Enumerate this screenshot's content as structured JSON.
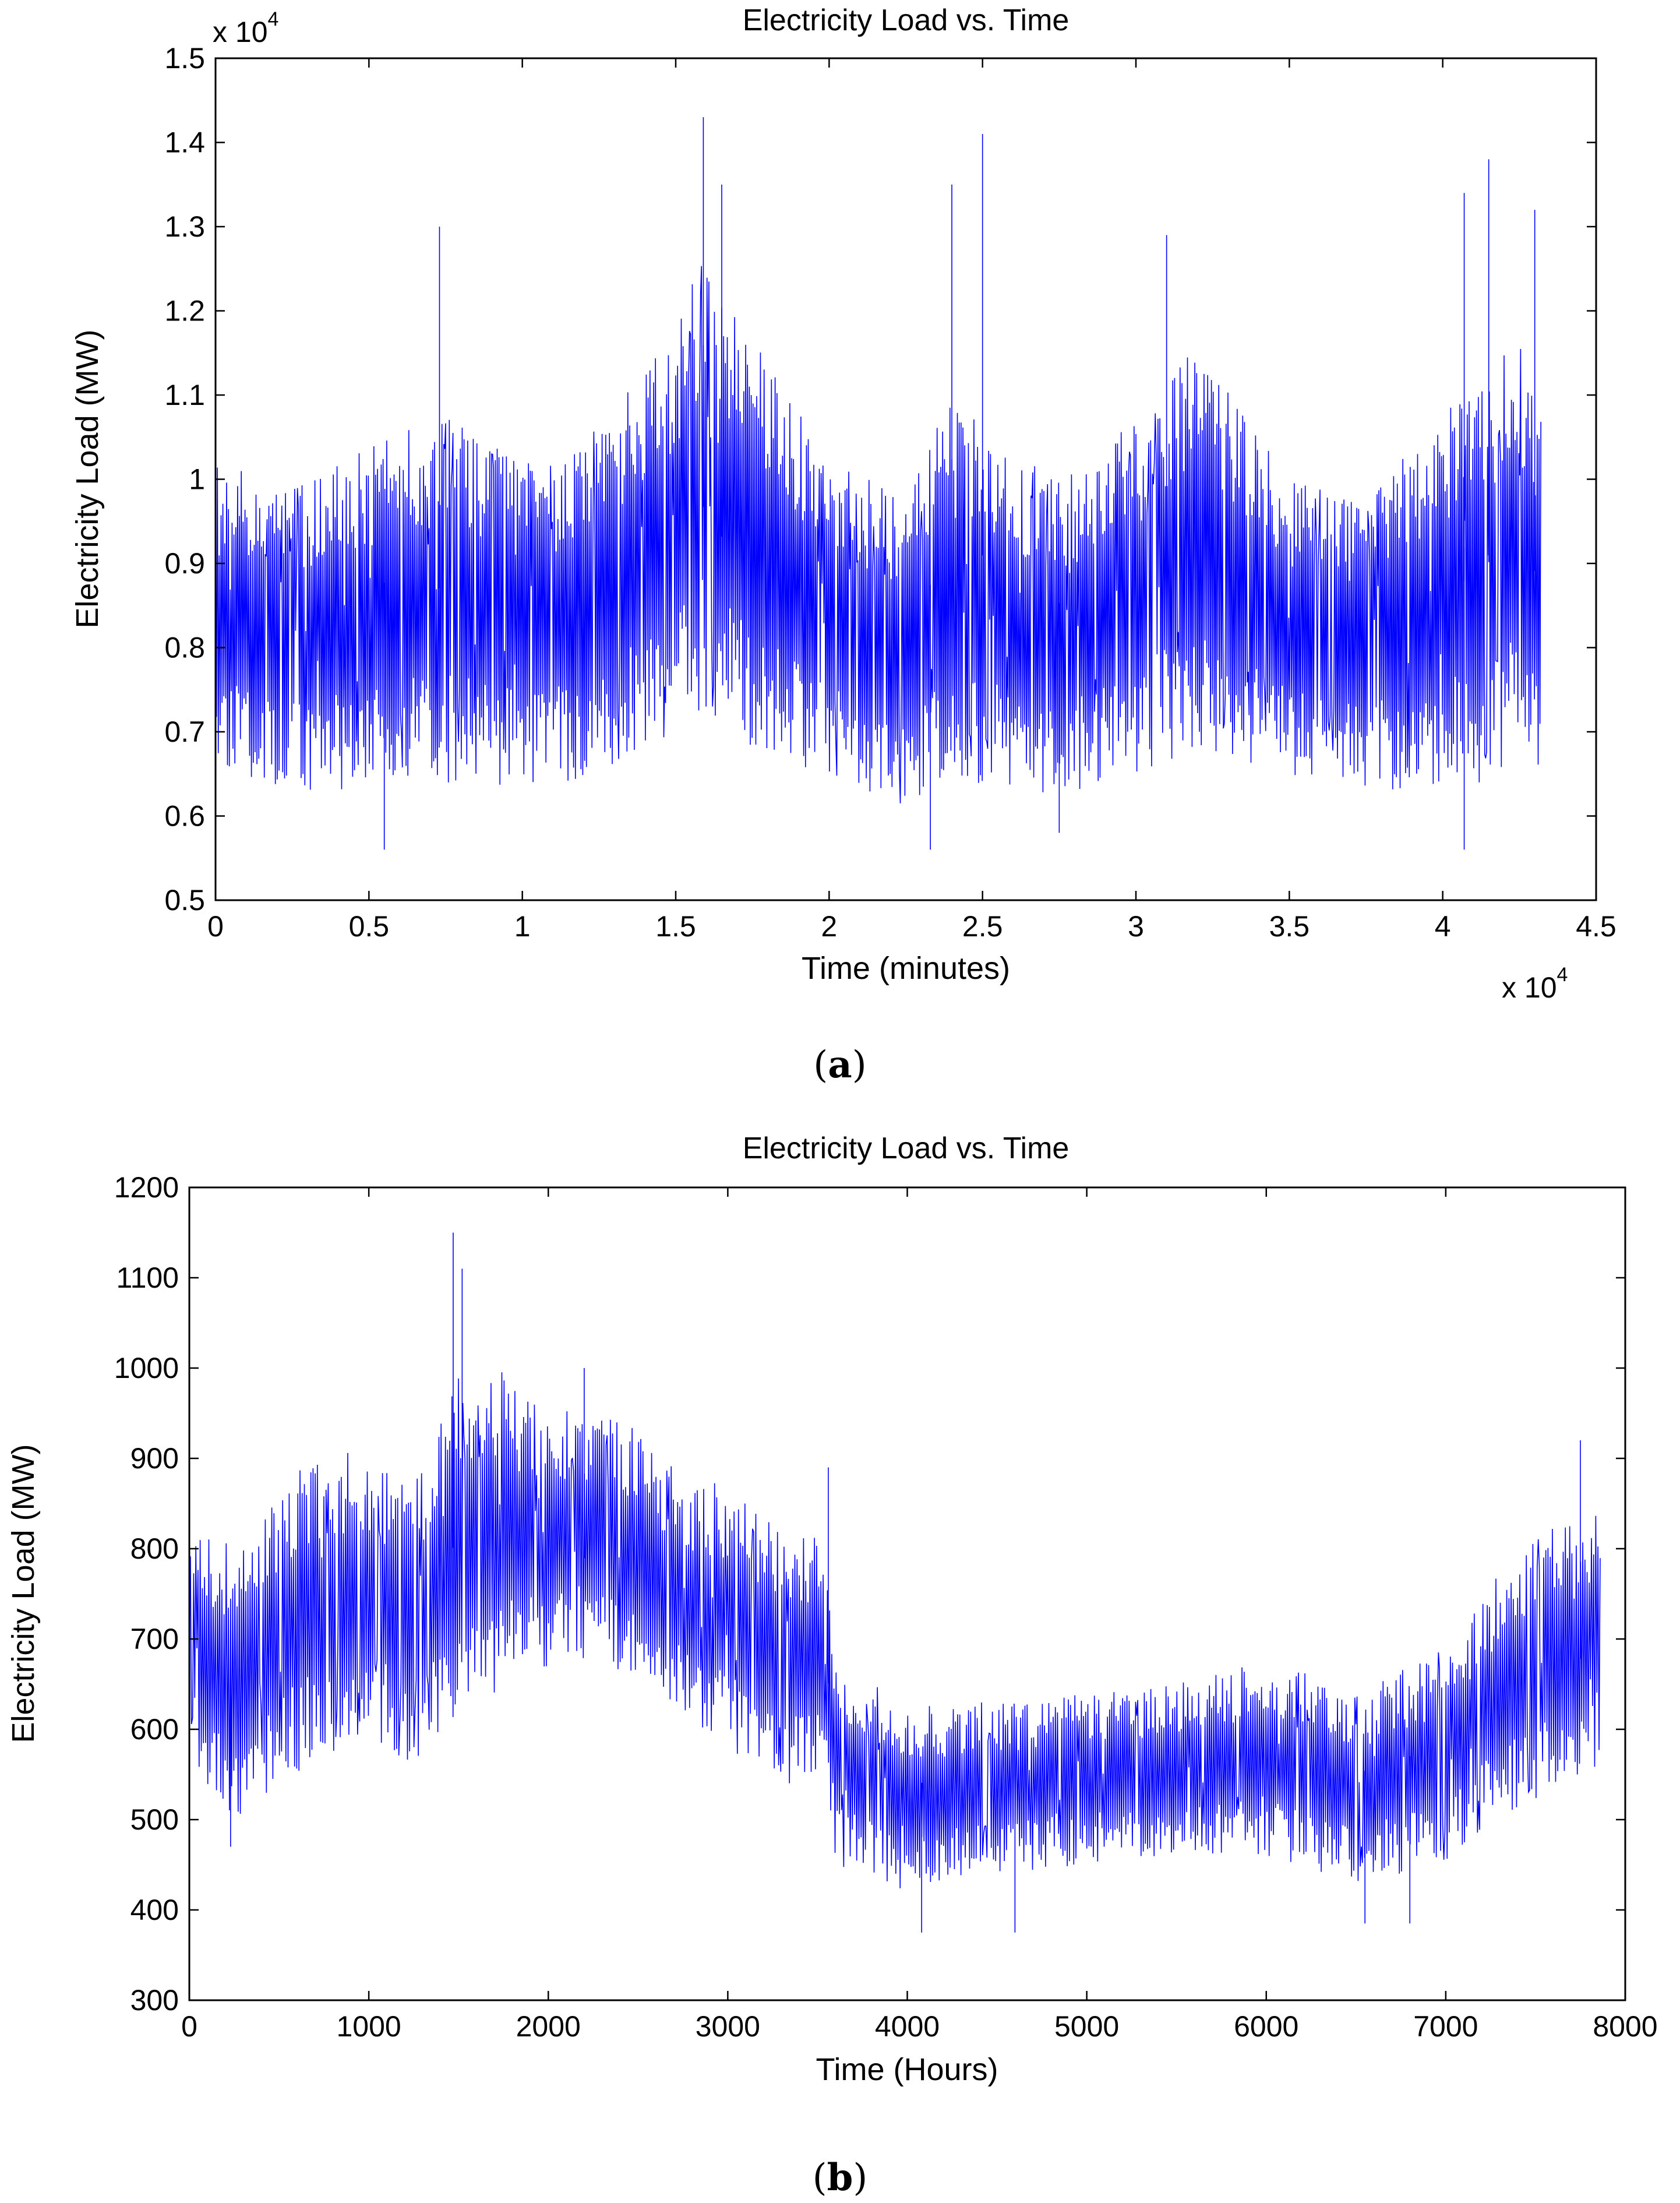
{
  "chart_data": [
    {
      "panel": "(a)",
      "type": "line",
      "title": "Electricity Load vs. Time",
      "xlabel": "Time (minutes)",
      "ylabel": "Electricity Load (MW)",
      "x_multiplier": "x 10",
      "x_exponent": "4",
      "y_multiplier": "x 10",
      "y_exponent": "4",
      "xlim": [
        0,
        4.5
      ],
      "ylim": [
        0.5,
        1.5
      ],
      "x_ticks": [
        0,
        0.5,
        1,
        1.5,
        2,
        2.5,
        3,
        3.5,
        4,
        4.5
      ],
      "x_tick_labels": [
        "0",
        "0.5",
        "1",
        "1.5",
        "2",
        "2.5",
        "3",
        "3.5",
        "4",
        "4.5"
      ],
      "y_ticks": [
        0.5,
        0.6,
        0.7,
        0.8,
        0.9,
        1.0,
        1.1,
        1.2,
        1.3,
        1.4,
        1.5
      ],
      "y_tick_labels": [
        "0.5",
        "0.6",
        "0.7",
        "0.8",
        "0.9",
        "1",
        "1.1",
        "1.2",
        "1.3",
        "1.4",
        "1.5"
      ],
      "x_data_end": 4.32,
      "envelope": {
        "x": [
          0,
          0.25,
          0.5,
          0.75,
          1.0,
          1.25,
          1.5,
          1.6,
          1.75,
          2.0,
          2.25,
          2.4,
          2.5,
          2.75,
          3.0,
          3.2,
          3.5,
          3.75,
          4.0,
          4.25,
          4.32
        ],
        "low": [
          0.65,
          0.63,
          0.63,
          0.64,
          0.63,
          0.65,
          0.7,
          0.72,
          0.68,
          0.64,
          0.61,
          0.62,
          0.64,
          0.62,
          0.65,
          0.68,
          0.65,
          0.63,
          0.62,
          0.66,
          0.66
        ],
        "high": [
          1.02,
          0.99,
          1.04,
          1.08,
          1.02,
          1.06,
          1.18,
          1.28,
          1.17,
          1.02,
          0.98,
          1.1,
          1.06,
          1.0,
          1.07,
          1.16,
          1.0,
          0.97,
          1.09,
          1.17,
          1.1
        ]
      },
      "peaks": [
        {
          "x": 0.73,
          "y": 1.3
        },
        {
          "x": 1.59,
          "y": 1.43
        },
        {
          "x": 1.65,
          "y": 1.35
        },
        {
          "x": 2.4,
          "y": 1.35
        },
        {
          "x": 2.5,
          "y": 1.41
        },
        {
          "x": 3.1,
          "y": 1.29
        },
        {
          "x": 4.07,
          "y": 1.34
        },
        {
          "x": 4.15,
          "y": 1.38
        },
        {
          "x": 4.3,
          "y": 1.32
        }
      ],
      "troughs": [
        {
          "x": 0.55,
          "y": 0.56
        },
        {
          "x": 2.33,
          "y": 0.56
        },
        {
          "x": 2.75,
          "y": 0.58
        },
        {
          "x": 4.07,
          "y": 0.56
        }
      ],
      "line_color": "#0000ff"
    },
    {
      "panel": "(b)",
      "type": "line",
      "title": "Electricity Load vs. Time",
      "xlabel": "Time (Hours)",
      "ylabel": "Electricity Load (MW)",
      "xlim": [
        0,
        8000
      ],
      "ylim": [
        300,
        1200
      ],
      "x_ticks": [
        0,
        1000,
        2000,
        3000,
        4000,
        5000,
        6000,
        7000,
        8000
      ],
      "x_tick_labels": [
        "0",
        "1000",
        "2000",
        "3000",
        "4000",
        "5000",
        "6000",
        "7000",
        "8000"
      ],
      "y_ticks": [
        300,
        400,
        500,
        600,
        700,
        800,
        900,
        1000,
        1100,
        1200
      ],
      "y_tick_labels": [
        "300",
        "400",
        "500",
        "600",
        "700",
        "800",
        "900",
        "1000",
        "1100",
        "1200"
      ],
      "x_data_end": 7860,
      "envelope": {
        "x": [
          0,
          250,
          500,
          750,
          1000,
          1250,
          1500,
          1750,
          2000,
          2250,
          2500,
          2750,
          3000,
          3250,
          3550,
          3600,
          4000,
          4500,
          5000,
          5500,
          6000,
          6500,
          7000,
          7250,
          7500,
          7860
        ],
        "low": [
          560,
          500,
          540,
          570,
          590,
          560,
          620,
          640,
          660,
          680,
          650,
          620,
          570,
          540,
          540,
          450,
          420,
          440,
          450,
          460,
          460,
          430,
          450,
          500,
          520,
          560
        ],
        "high": [
          840,
          800,
          860,
          920,
          900,
          880,
          990,
          1000,
          960,
          960,
          930,
          880,
          870,
          830,
          810,
          670,
          630,
          630,
          640,
          650,
          680,
          640,
          690,
          760,
          820,
          840
        ]
      },
      "peaks": [
        {
          "x": 1470,
          "y": 1150
        },
        {
          "x": 1520,
          "y": 1110
        },
        {
          "x": 2200,
          "y": 1000
        },
        {
          "x": 7750,
          "y": 920
        },
        {
          "x": 3560,
          "y": 890
        }
      ],
      "troughs": [
        {
          "x": 230,
          "y": 470
        },
        {
          "x": 4080,
          "y": 375
        },
        {
          "x": 4600,
          "y": 375
        },
        {
          "x": 6550,
          "y": 385
        },
        {
          "x": 6800,
          "y": 385
        }
      ],
      "line_color": "#0000ff"
    }
  ],
  "captions": {
    "a": {
      "open": "(",
      "letter": "a",
      "close": ")"
    },
    "b": {
      "open": "(",
      "letter": "b",
      "close": ")"
    }
  }
}
